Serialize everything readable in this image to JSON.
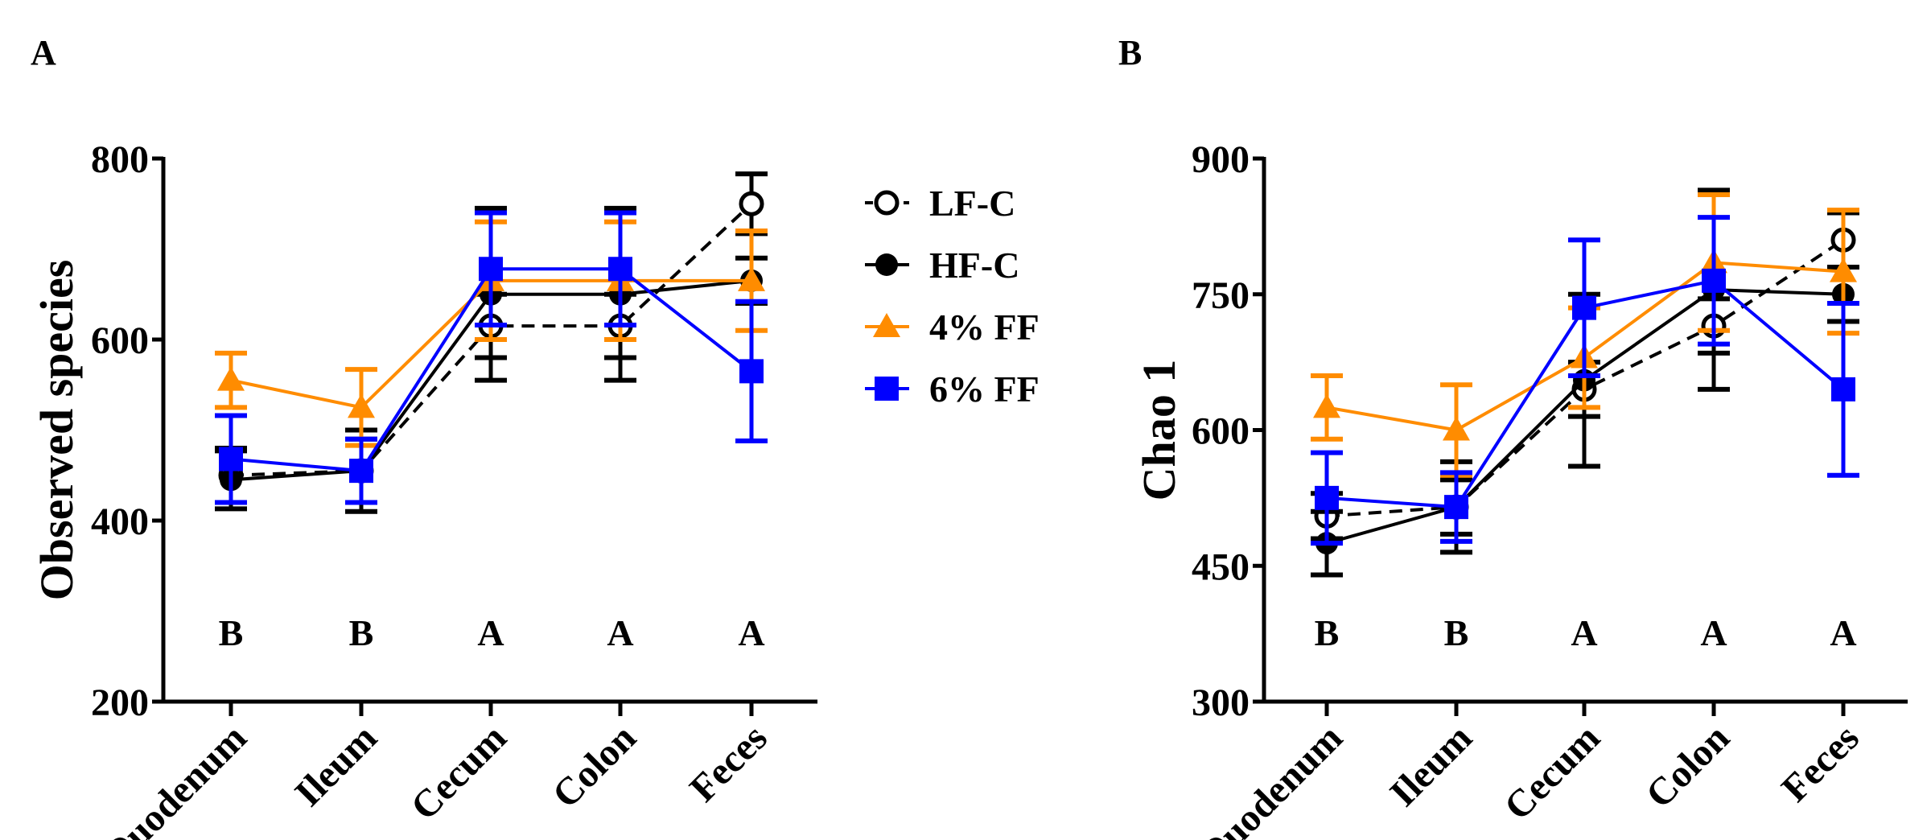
{
  "legend": {
    "placement": "between panels, top",
    "entries": [
      {
        "name": "LF-C",
        "color": "#000000",
        "marker": "open-circle",
        "dash": true
      },
      {
        "name": "HF-C",
        "color": "#000000",
        "marker": "filled-circle",
        "dash": false
      },
      {
        "name": "4% FF",
        "color": "#FF8C00",
        "marker": "triangle",
        "dash": false
      },
      {
        "name": "6% FF",
        "color": "#0000FF",
        "marker": "square",
        "dash": false
      }
    ]
  },
  "chart_data": [
    {
      "type": "line",
      "panel_label": "A",
      "ylabel": "Observed species",
      "xlabel": "",
      "ylim": [
        200,
        800
      ],
      "yticks": [
        "200",
        "400",
        "600",
        "800"
      ],
      "categories": [
        "Duodenum",
        "Ileum",
        "Cecum",
        "Colon",
        "Feces"
      ],
      "group_letters": [
        "B",
        "B",
        "A",
        "A",
        "A"
      ],
      "grid": false,
      "series": [
        {
          "name": "LF-C",
          "values": [
            450,
            455,
            615,
            615,
            750
          ],
          "errors": [
            30,
            35,
            35,
            35,
            33
          ]
        },
        {
          "name": "HF-C",
          "values": [
            445,
            455,
            650,
            650,
            665
          ],
          "errors": [
            32,
            45,
            95,
            95,
            25
          ]
        },
        {
          "name": "4% FF",
          "values": [
            555,
            525,
            665,
            665,
            665
          ],
          "errors": [
            30,
            42,
            65,
            65,
            55
          ]
        },
        {
          "name": "6% FF",
          "values": [
            468,
            455,
            678,
            678,
            565
          ],
          "errors": [
            48,
            35,
            62,
            62,
            77
          ]
        }
      ]
    },
    {
      "type": "line",
      "panel_label": "B",
      "ylabel": "Chao 1",
      "xlabel": "",
      "ylim": [
        300,
        900
      ],
      "yticks": [
        "300",
        "450",
        "600",
        "750",
        "900"
      ],
      "categories": [
        "Duodenum",
        "Ileum",
        "Cecum",
        "Colon",
        "Feces"
      ],
      "group_letters": [
        "B",
        "B",
        "A",
        "A",
        "A"
      ],
      "grid": false,
      "series": [
        {
          "name": "LF-C",
          "values": [
            505,
            515,
            645,
            715,
            810
          ],
          "errors": [
            25,
            30,
            30,
            30,
            30
          ]
        },
        {
          "name": "HF-C",
          "values": [
            475,
            515,
            655,
            755,
            750
          ],
          "errors": [
            35,
            50,
            95,
            110,
            30
          ]
        },
        {
          "name": "4% FF",
          "values": [
            625,
            600,
            680,
            785,
            775
          ],
          "errors": [
            35,
            50,
            55,
            75,
            68
          ]
        },
        {
          "name": "6% FF",
          "values": [
            525,
            515,
            735,
            765,
            645
          ],
          "errors": [
            50,
            38,
            75,
            70,
            95
          ]
        }
      ]
    }
  ]
}
